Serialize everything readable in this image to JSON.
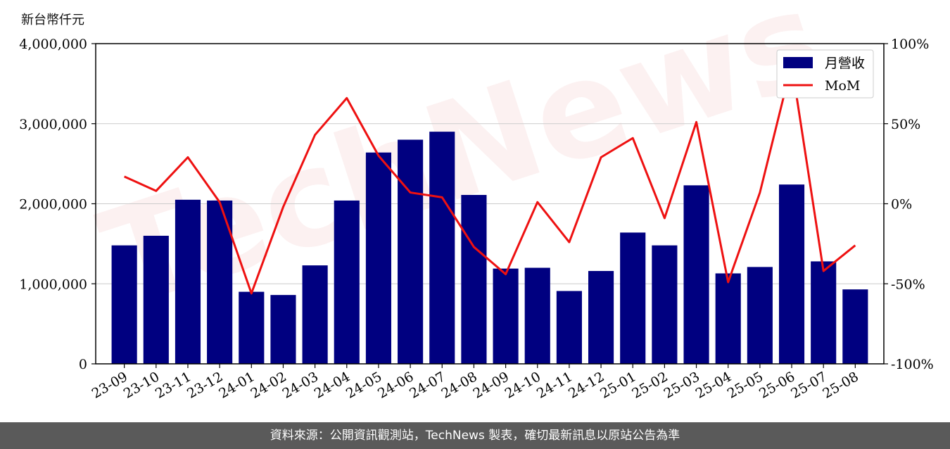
{
  "unit_label": "新台幣仟元",
  "footer_text": "資料來源：公開資訊觀測站，TechNews 製表，確切最新訊息以原站公告為準",
  "watermark_text": "TechNews",
  "colors": {
    "bar": "#000080",
    "line": "#ee1111",
    "grid": "#cccccc",
    "footer_bg": "#5a5a5a"
  },
  "chart_data": {
    "type": "bar",
    "categories": [
      "23-09",
      "23-10",
      "23-11",
      "23-12",
      "24-01",
      "24-02",
      "24-03",
      "24-04",
      "24-05",
      "24-06",
      "24-07",
      "24-08",
      "24-09",
      "24-10",
      "24-11",
      "24-12",
      "25-01",
      "25-02",
      "25-03",
      "25-04",
      "25-05",
      "25-06",
      "25-07",
      "25-08"
    ],
    "series": [
      {
        "name": "月營收",
        "type": "bar",
        "axis": "left",
        "values": [
          1480000,
          1600000,
          2050000,
          2040000,
          900000,
          860000,
          1230000,
          2040000,
          2640000,
          2800000,
          2900000,
          2110000,
          1190000,
          1200000,
          910000,
          1160000,
          1640000,
          1480000,
          2230000,
          1130000,
          1210000,
          2240000,
          1280000,
          930000
        ]
      },
      {
        "name": "MoM",
        "type": "line",
        "axis": "right",
        "values": [
          17,
          8,
          29,
          1,
          -56,
          -2,
          43,
          66,
          30,
          7,
          4,
          -27,
          -44,
          1,
          -24,
          29,
          41,
          -9,
          51,
          -49,
          7,
          87,
          -42,
          -26
        ]
      }
    ],
    "y_left": {
      "min": 0,
      "max": 4000000,
      "ticks": [
        "0",
        "1,000,000",
        "2,000,000",
        "3,000,000",
        "4,000,000"
      ]
    },
    "y_right": {
      "min": -100,
      "max": 100,
      "ticks": [
        "-100%",
        "-50%",
        "0%",
        "50%",
        "100%"
      ]
    },
    "grid": true,
    "legend_position": "top-right"
  }
}
